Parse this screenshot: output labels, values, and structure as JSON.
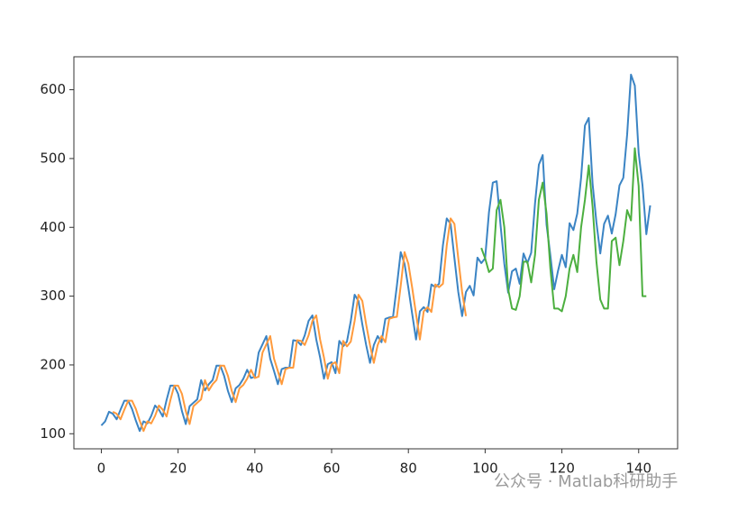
{
  "chart_data": {
    "type": "line",
    "watermark": "公众号 · Matlab科研助手",
    "xlim": [
      -7.15,
      150.15
    ],
    "xticks": [
      0,
      20,
      40,
      60,
      80,
      100,
      120,
      140
    ],
    "ylim": [
      78.1,
      647.9
    ],
    "yticks": [
      100,
      200,
      300,
      400,
      500,
      600
    ],
    "series": [
      {
        "color": "#3b84c4",
        "x": [
          0,
          1,
          2,
          3,
          4,
          5,
          6,
          7,
          8,
          9,
          10,
          11,
          12,
          13,
          14,
          15,
          16,
          17,
          18,
          19,
          20,
          21,
          22,
          23,
          24,
          25,
          26,
          27,
          28,
          29,
          30,
          31,
          32,
          33,
          34,
          35,
          36,
          37,
          38,
          39,
          40,
          41,
          42,
          43,
          44,
          45,
          46,
          47,
          48,
          49,
          50,
          51,
          52,
          53,
          54,
          55,
          56,
          57,
          58,
          59,
          60,
          61,
          62,
          63,
          64,
          65,
          66,
          67,
          68,
          69,
          70,
          71,
          72,
          73,
          74,
          75,
          76,
          77,
          78,
          79,
          80,
          81,
          82,
          83,
          84,
          85,
          86,
          87,
          88,
          89,
          90,
          91,
          92,
          93,
          94,
          95,
          96,
          97,
          98,
          99,
          100,
          101,
          102,
          103,
          104,
          105,
          106,
          107,
          108,
          109,
          110,
          111,
          112,
          113,
          114,
          115,
          116,
          117,
          118,
          119,
          120,
          121,
          122,
          123,
          124,
          125,
          126,
          127,
          128,
          129,
          130,
          131,
          132,
          133,
          134,
          135,
          136,
          137,
          138,
          139,
          140,
          141,
          142,
          143
        ],
        "values": [
          112,
          118,
          132,
          129,
          121,
          135,
          148,
          148,
          136,
          119,
          104,
          118,
          115,
          126,
          141,
          135,
          125,
          149,
          170,
          170,
          158,
          133,
          114,
          140,
          145,
          150,
          178,
          163,
          172,
          178,
          199,
          199,
          184,
          162,
          146,
          166,
          171,
          180,
          193,
          181,
          183,
          218,
          230,
          242,
          209,
          191,
          172,
          194,
          196,
          196,
          236,
          235,
          229,
          243,
          264,
          272,
          237,
          211,
          180,
          201,
          204,
          188,
          235,
          227,
          234,
          264,
          302,
          293,
          259,
          229,
          203,
          229,
          242,
          233,
          267,
          269,
          270,
          315,
          364,
          347,
          312,
          274,
          237,
          278,
          284,
          277,
          317,
          313,
          318,
          374,
          413,
          405,
          355,
          306,
          271,
          306,
          315,
          301,
          356,
          348,
          355,
          422,
          465,
          467,
          404,
          347,
          305,
          336,
          340,
          318,
          362,
          348,
          363,
          435,
          491,
          505,
          404,
          359,
          310,
          337,
          360,
          342,
          406,
          396,
          420,
          472,
          548,
          559,
          463,
          407,
          362,
          405,
          417,
          391,
          419,
          461,
          472,
          535,
          622,
          606,
          508,
          461,
          390,
          432
        ]
      },
      {
        "color": "#ff9a3c",
        "x": [
          3,
          4,
          5,
          6,
          7,
          8,
          9,
          10,
          11,
          12,
          13,
          14,
          15,
          16,
          17,
          18,
          19,
          20,
          21,
          22,
          23,
          24,
          25,
          26,
          27,
          28,
          29,
          30,
          31,
          32,
          33,
          34,
          35,
          36,
          37,
          38,
          39,
          40,
          41,
          42,
          43,
          44,
          45,
          46,
          47,
          48,
          49,
          50,
          51,
          52,
          53,
          54,
          55,
          56,
          57,
          58,
          59,
          60,
          61,
          62,
          63,
          64,
          65,
          66,
          67,
          68,
          69,
          70,
          71,
          72,
          73,
          74,
          75,
          76,
          77,
          78,
          79,
          80,
          81,
          82,
          83,
          84,
          85,
          86,
          87,
          88,
          89,
          90,
          91,
          92,
          93,
          94,
          95
        ],
        "values": [
          132,
          129,
          121,
          135,
          148,
          148,
          136,
          119,
          104,
          118,
          115,
          126,
          141,
          135,
          125,
          149,
          170,
          170,
          158,
          133,
          114,
          140,
          145,
          150,
          178,
          163,
          172,
          178,
          199,
          199,
          184,
          162,
          146,
          166,
          171,
          180,
          193,
          181,
          183,
          218,
          230,
          242,
          209,
          191,
          172,
          194,
          196,
          196,
          236,
          235,
          229,
          243,
          264,
          272,
          237,
          211,
          180,
          201,
          204,
          188,
          235,
          227,
          234,
          264,
          302,
          293,
          259,
          229,
          203,
          229,
          242,
          233,
          267,
          269,
          270,
          315,
          364,
          347,
          312,
          274,
          237,
          278,
          284,
          277,
          317,
          313,
          318,
          374,
          413,
          405,
          355,
          306,
          271
        ]
      },
      {
        "color": "#4caf3f",
        "x": [
          99,
          100,
          101,
          102,
          103,
          104,
          105,
          106,
          107,
          108,
          109,
          110,
          111,
          112,
          113,
          114,
          115,
          116,
          117,
          118,
          119,
          120,
          121,
          122,
          123,
          124,
          125,
          126,
          127,
          128,
          129,
          130,
          131,
          132,
          133,
          134,
          135,
          136,
          137,
          138,
          139,
          140,
          141,
          142
        ],
        "values": [
          370,
          355,
          335,
          340,
          425,
          440,
          400,
          310,
          282,
          280,
          300,
          350,
          350,
          320,
          360,
          440,
          465,
          420,
          340,
          282,
          282,
          278,
          300,
          340,
          360,
          335,
          400,
          440,
          490,
          430,
          350,
          295,
          282,
          282,
          380,
          385,
          345,
          380,
          425,
          410,
          515,
          460,
          300,
          300
        ]
      }
    ]
  }
}
